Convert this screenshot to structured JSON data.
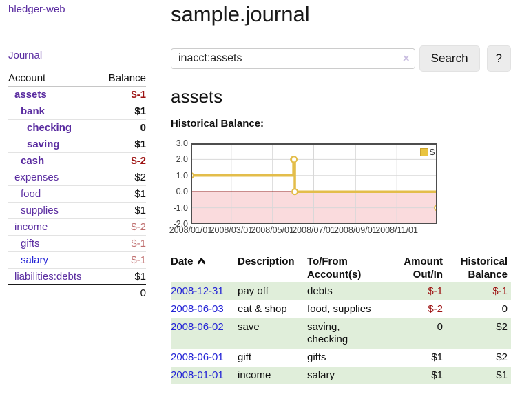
{
  "sidebar": {
    "brand": "hledger-web",
    "journal_link": "Journal",
    "table": {
      "account_header": "Account",
      "balance_header": "Balance",
      "accounts": [
        {
          "name": "assets",
          "indent": 1,
          "bold": true,
          "balance": "$-1",
          "balance_tone": "negative",
          "name_tone": "purple"
        },
        {
          "name": "bank",
          "indent": 2,
          "bold": true,
          "balance": "$1",
          "balance_tone": "normal",
          "name_tone": "purple"
        },
        {
          "name": "checking",
          "indent": 3,
          "bold": true,
          "balance": "0",
          "balance_tone": "normal",
          "name_tone": "purple"
        },
        {
          "name": "saving",
          "indent": 3,
          "bold": true,
          "balance": "$1",
          "balance_tone": "normal",
          "name_tone": "purple"
        },
        {
          "name": "cash",
          "indent": 2,
          "bold": true,
          "balance": "$-2",
          "balance_tone": "negative",
          "name_tone": "purple"
        },
        {
          "name": "expenses",
          "indent": 1,
          "bold": false,
          "balance": "$2",
          "balance_tone": "normal",
          "name_tone": "purple"
        },
        {
          "name": "food",
          "indent": 2,
          "bold": false,
          "balance": "$1",
          "balance_tone": "normal",
          "name_tone": "purple"
        },
        {
          "name": "supplies",
          "indent": 2,
          "bold": false,
          "balance": "$1",
          "balance_tone": "normal",
          "name_tone": "purple"
        },
        {
          "name": "income",
          "indent": 1,
          "bold": false,
          "balance": "$-2",
          "balance_tone": "rose",
          "name_tone": "purple"
        },
        {
          "name": "gifts",
          "indent": 2,
          "bold": false,
          "balance": "$-1",
          "balance_tone": "rose",
          "name_tone": "purple"
        },
        {
          "name": "salary",
          "indent": 2,
          "bold": false,
          "balance": "$-1",
          "balance_tone": "rose",
          "name_tone": "blue"
        },
        {
          "name": "liabilities:debts",
          "indent": 1,
          "bold": false,
          "balance": "$1",
          "balance_tone": "normal",
          "name_tone": "purple"
        }
      ],
      "total": "0"
    }
  },
  "header": {
    "title": "sample.journal",
    "search": {
      "value": "inacct:assets",
      "clear_icon": "×",
      "search_button": "Search",
      "help_button": "?"
    }
  },
  "main": {
    "account_heading": "assets",
    "chart_label": "Historical Balance:"
  },
  "chart_data": {
    "type": "line",
    "step": true,
    "title": "Historical Balance:",
    "series": [
      {
        "name": "$",
        "color": "#e3bd4a",
        "points": [
          {
            "date": "2008-01-01",
            "value": 1
          },
          {
            "date": "2008-06-01",
            "value": 2
          },
          {
            "date": "2008-06-02",
            "value": 2
          },
          {
            "date": "2008-06-03",
            "value": 0
          },
          {
            "date": "2008-12-31",
            "value": -1
          }
        ]
      }
    ],
    "x_range": [
      "2008-01-01",
      "2008-12-31"
    ],
    "y_range": [
      -2,
      3
    ],
    "x_ticks": [
      "2008/01/01",
      "2008/03/01",
      "2008/05/01",
      "2008/07/01",
      "2008/09/01",
      "2008/11/01"
    ],
    "y_ticks": [
      "3.0",
      "2.0",
      "1.0",
      "0.0",
      "-1.0",
      "-2.0"
    ],
    "grid": true,
    "legend_position": "top-right",
    "legend_label": "$",
    "negative_region_color": "#fadbdd",
    "zero_line_color": "#931717",
    "grid_color": "#d8d8d8",
    "border_color": "#4d4d4d"
  },
  "register": {
    "headers": [
      "Date",
      "Description",
      "To/From Account(s)",
      "Amount Out/In",
      "Historical Balance"
    ],
    "rows": [
      {
        "date": "2008-12-31",
        "description": "pay off",
        "accounts": "debts",
        "amount": "$-1",
        "amount_tone": "negative",
        "balance": "$-1",
        "balance_tone": "negative"
      },
      {
        "date": "2008-06-03",
        "description": "eat & shop",
        "accounts": "food, supplies",
        "amount": "$-2",
        "amount_tone": "negative",
        "balance": "0",
        "balance_tone": "normal"
      },
      {
        "date": "2008-06-02",
        "description": "save",
        "accounts": "saving, checking",
        "amount": "0",
        "amount_tone": "normal",
        "balance": "$2",
        "balance_tone": "normal"
      },
      {
        "date": "2008-06-01",
        "description": "gift",
        "accounts": "gifts",
        "amount": "$1",
        "amount_tone": "normal",
        "balance": "$2",
        "balance_tone": "normal"
      },
      {
        "date": "2008-01-01",
        "description": "income",
        "accounts": "salary",
        "amount": "$1",
        "amount_tone": "normal",
        "balance": "$1",
        "balance_tone": "normal"
      }
    ]
  },
  "colors": {
    "purple_link": "#5a2ca0",
    "blue_link": "#2424d6",
    "negative": "#9d1212",
    "rose_negative": "#bf6e6e",
    "row_green": "#e0eeda",
    "line_gold": "#e3bd4a"
  }
}
